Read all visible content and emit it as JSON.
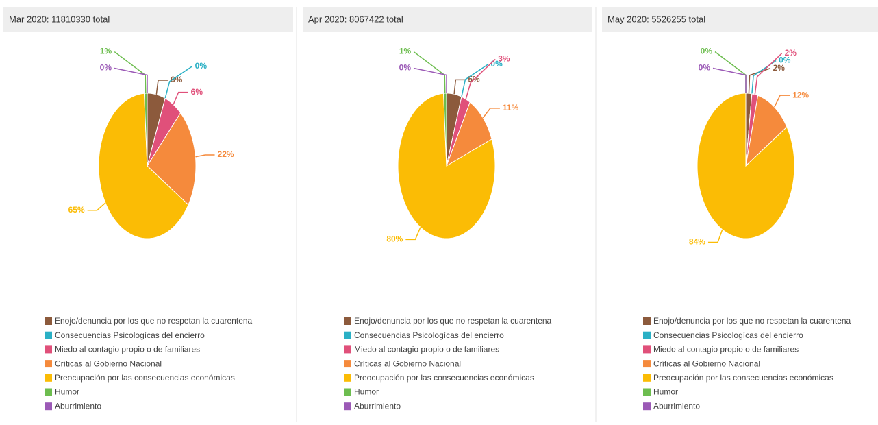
{
  "chart_data": [
    {
      "type": "pie",
      "title": "Mar 2020: 11810330 total",
      "categories": [
        "Enojo/denuncia por los que no respetan la cuarentena",
        "Consecuencias Psicologícas del encierro",
        "Miedo al contagio propio o de familiares",
        "Críticas al Gobierno Nacional",
        "Preocupación por las consecuencias económicas",
        "Humor",
        "Aburrimiento"
      ],
      "values": [
        6,
        0,
        6,
        22,
        65,
        1,
        0
      ],
      "value_labels": [
        "6%",
        "0%",
        "6%",
        "22%",
        "65%",
        "1%",
        "0%"
      ],
      "colors": [
        "#8c5a3c",
        "#2ab0c5",
        "#e0507a",
        "#f58a3c",
        "#fbbc05",
        "#6dbd4f",
        "#9b59b6"
      ]
    },
    {
      "type": "pie",
      "title": "Apr 2020: 8067422 total",
      "categories": [
        "Enojo/denuncia por los que no respetan la cuarentena",
        "Consecuencias Psicologícas del encierro",
        "Miedo al contagio propio o de familiares",
        "Críticas al Gobierno Nacional",
        "Preocupación por las consecuencias económicas",
        "Humor",
        "Aburrimiento"
      ],
      "values": [
        5,
        0,
        3,
        11,
        80,
        1,
        0
      ],
      "value_labels": [
        "5%",
        "0%",
        "3%",
        "11%",
        "80%",
        "1%",
        "0%"
      ],
      "colors": [
        "#8c5a3c",
        "#2ab0c5",
        "#e0507a",
        "#f58a3c",
        "#fbbc05",
        "#6dbd4f",
        "#9b59b6"
      ]
    },
    {
      "type": "pie",
      "title": "May 2020: 5526255 total",
      "categories": [
        "Enojo/denuncia por los que no respetan la cuarentena",
        "Consecuencias Psicologícas del encierro",
        "Miedo al contagio propio o de familiares",
        "Críticas al Gobierno Nacional",
        "Preocupación por las consecuencias económicas",
        "Humor",
        "Aburrimiento"
      ],
      "values": [
        2,
        0,
        2,
        12,
        84,
        0,
        0
      ],
      "value_labels": [
        "2%",
        "0%",
        "2%",
        "12%",
        "84%",
        "0%",
        "0%"
      ],
      "colors": [
        "#8c5a3c",
        "#2ab0c5",
        "#e0507a",
        "#f58a3c",
        "#fbbc05",
        "#6dbd4f",
        "#9b59b6"
      ]
    }
  ]
}
